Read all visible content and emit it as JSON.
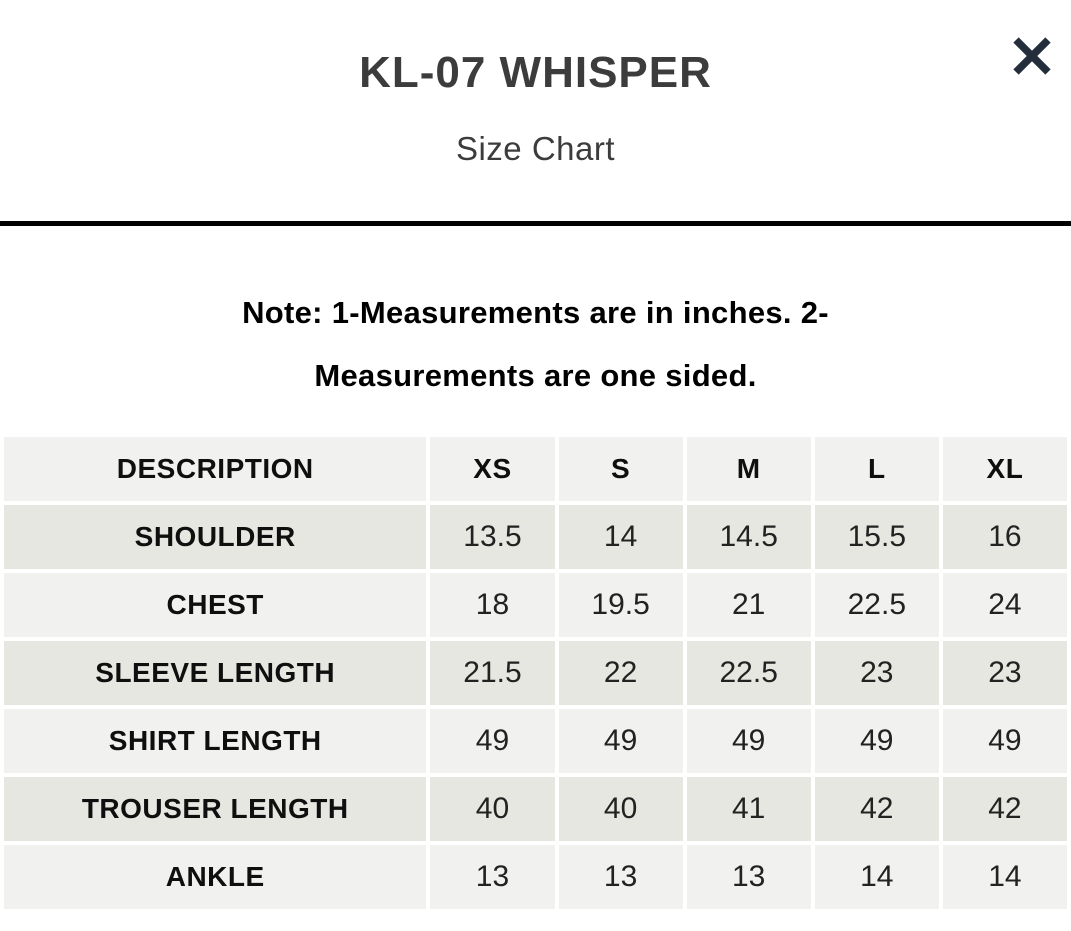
{
  "header": {
    "title": "KL-07 WHISPER",
    "subtitle": "Size Chart",
    "close_icon": "close-icon"
  },
  "note": {
    "lines": [
      "Note: 1-Measurements are in inches. 2-",
      "Measurements are one sided."
    ],
    "full_text": "Note: 1-Measurements are in inches. 2-Measurements are one sided."
  },
  "table": {
    "columns": [
      "DESCRIPTION",
      "XS",
      "S",
      "M",
      "L",
      "XL"
    ],
    "rows": [
      {
        "label": "SHOULDER",
        "values": [
          "13.5",
          "14",
          "14.5",
          "15.5",
          "16"
        ]
      },
      {
        "label": "CHEST",
        "values": [
          "18",
          "19.5",
          "21",
          "22.5",
          "24"
        ]
      },
      {
        "label": "SLEEVE LENGTH",
        "values": [
          "21.5",
          "22",
          "22.5",
          "23",
          "23"
        ]
      },
      {
        "label": "SHIRT LENGTH",
        "values": [
          "49",
          "49",
          "49",
          "49",
          "49"
        ]
      },
      {
        "label": "TROUSER LENGTH",
        "values": [
          "40",
          "40",
          "41",
          "42",
          "42"
        ]
      },
      {
        "label": "ANKLE",
        "values": [
          "13",
          "13",
          "13",
          "14",
          "14"
        ]
      }
    ]
  },
  "colors": {
    "title_color": "#3c3c3c",
    "divider_color": "#000000",
    "row_light": "#f1f1ef",
    "row_dark": "#e7e7e1",
    "close_icon_color": "#232d3b"
  }
}
